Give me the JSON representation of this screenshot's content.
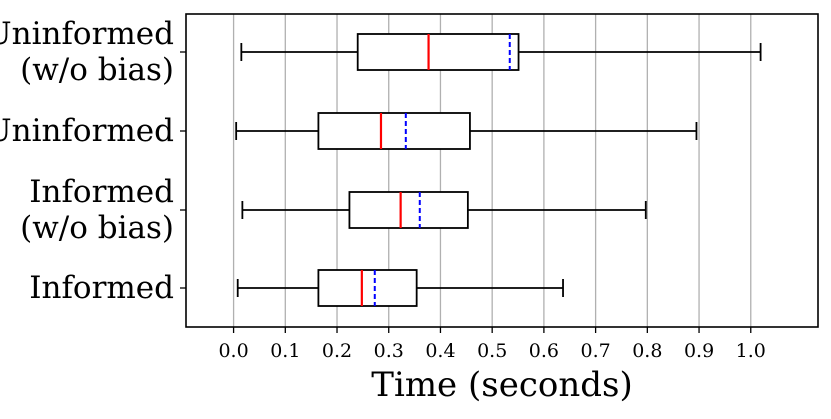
{
  "chart_data": {
    "type": "boxplot",
    "orientation": "horizontal",
    "categories": [
      [
        "Uninformed",
        "(w/o bias)"
      ],
      [
        "Uninformed"
      ],
      [
        "Informed",
        "(w/o bias)"
      ],
      [
        "Informed"
      ]
    ],
    "boxes": [
      {
        "whislo": 0.015,
        "q1": 0.24,
        "median": 0.377,
        "mean": 0.534,
        "q3": 0.551,
        "whishi": 1.019
      },
      {
        "whislo": 0.005,
        "q1": 0.164,
        "median": 0.285,
        "mean": 0.333,
        "q3": 0.457,
        "whishi": 0.895
      },
      {
        "whislo": 0.017,
        "q1": 0.224,
        "median": 0.323,
        "mean": 0.36,
        "q3": 0.453,
        "whishi": 0.797
      },
      {
        "whislo": 0.008,
        "q1": 0.164,
        "median": 0.248,
        "mean": 0.273,
        "q3": 0.354,
        "whishi": 0.637
      }
    ],
    "xlabel": "Time (seconds)",
    "xlim": [
      -0.092,
      1.13
    ],
    "xticks": [
      "0.0",
      "0.1",
      "0.2",
      "0.3",
      "0.4",
      "0.5",
      "0.6",
      "0.7",
      "0.8",
      "0.9",
      "1.0"
    ],
    "grid": "vertical",
    "median_color": "#ff0000",
    "mean_color": "#0000ff",
    "box_color": "#000000",
    "grid_color": "#b0b0b0"
  }
}
